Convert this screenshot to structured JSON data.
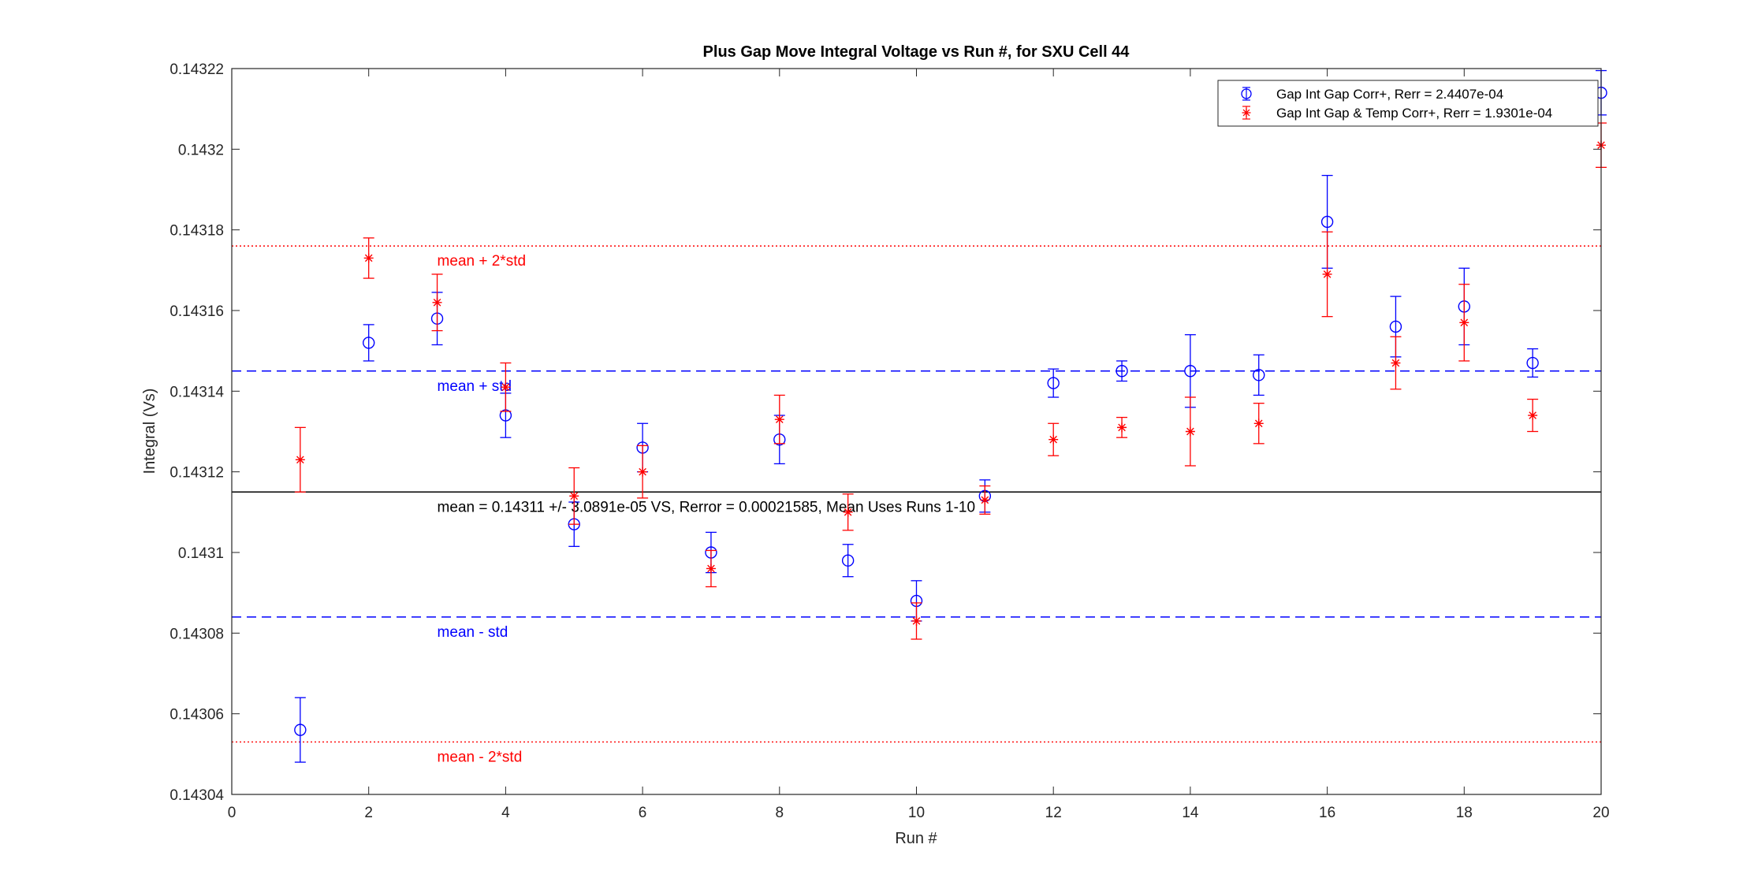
{
  "chart_data": {
    "type": "scatter",
    "title": "Plus Gap Move Integral Voltage vs Run #, for SXU Cell 44",
    "xlabel": "Run #",
    "ylabel": "Integral (Vs)",
    "xlim": [
      0,
      20
    ],
    "ylim": [
      0.14304,
      0.14322
    ],
    "xticks": [
      0,
      2,
      4,
      6,
      8,
      10,
      12,
      14,
      16,
      18,
      20
    ],
    "yticks": [
      0.14304,
      0.14306,
      0.14308,
      0.1431,
      0.14312,
      0.14314,
      0.14316,
      0.14318,
      0.1432,
      0.14322
    ],
    "ytick_labels": [
      "0.14304",
      "0.14306",
      "0.14308",
      "0.1431",
      "0.14312",
      "0.14314",
      "0.14316",
      "0.14318",
      "0.1432",
      "0.14322"
    ],
    "grid": false,
    "legend_position": "top-right",
    "series": [
      {
        "name": "Gap Int Gap Corr+, Rerr = 2.4407e-04",
        "marker": "circle",
        "color": "#0000ff",
        "x": [
          1,
          2,
          3,
          4,
          5,
          6,
          7,
          8,
          9,
          10,
          11,
          12,
          13,
          14,
          15,
          16,
          17,
          18,
          19,
          20
        ],
        "y": [
          0.143056,
          0.143152,
          0.143158,
          0.143134,
          0.143107,
          0.143126,
          0.1431,
          0.143128,
          0.143098,
          0.143088,
          0.143114,
          0.143142,
          0.143145,
          0.143145,
          0.143144,
          0.143182,
          0.143156,
          0.143161,
          0.143147,
          0.143214
        ],
        "err": [
          8e-06,
          4.5e-06,
          6.5e-06,
          5.5e-06,
          5.5e-06,
          6e-06,
          5e-06,
          6e-06,
          4e-06,
          5e-06,
          4e-06,
          3.5e-06,
          2.5e-06,
          9e-06,
          5e-06,
          1.15e-05,
          7.5e-06,
          9.5e-06,
          3.5e-06,
          5.5e-06
        ]
      },
      {
        "name": "Gap Int Gap & Temp  Corr+, Rerr = 1.9301e-04",
        "marker": "asterisk",
        "color": "#ff0000",
        "x": [
          1,
          2,
          3,
          4,
          5,
          6,
          7,
          8,
          9,
          10,
          11,
          12,
          13,
          14,
          15,
          16,
          17,
          18,
          19,
          20
        ],
        "y": [
          0.143123,
          0.143173,
          0.143162,
          0.143141,
          0.143114,
          0.14312,
          0.143096,
          0.143133,
          0.14311,
          0.143083,
          0.143113,
          0.143128,
          0.143131,
          0.14313,
          0.143132,
          0.143169,
          0.143147,
          0.143157,
          0.143134,
          0.143201
        ],
        "err": [
          8e-06,
          5e-06,
          7e-06,
          6e-06,
          7e-06,
          6.5e-06,
          4.5e-06,
          6e-06,
          4.5e-06,
          4.5e-06,
          3.5e-06,
          4e-06,
          2.5e-06,
          8.5e-06,
          5e-06,
          1.05e-05,
          6.5e-06,
          9.5e-06,
          4e-06,
          5.5e-06
        ]
      }
    ],
    "reference_lines": [
      {
        "label": "mean + 2*std",
        "y": 0.143176,
        "style": "dotted",
        "color": "#ff0000"
      },
      {
        "label": "mean + std",
        "y": 0.143145,
        "style": "dashed",
        "color": "#0000ff"
      },
      {
        "label": "mean = 0.14311 +/- 3.0891e-05 VS, Rerror = 0.00021585, Mean Uses Runs 1-10",
        "y": 0.143115,
        "style": "solid",
        "color": "#000000"
      },
      {
        "label": "mean - std",
        "y": 0.143084,
        "style": "dashed",
        "color": "#0000ff"
      },
      {
        "label": "mean - 2*std",
        "y": 0.143053,
        "style": "dotted",
        "color": "#ff0000"
      }
    ]
  }
}
